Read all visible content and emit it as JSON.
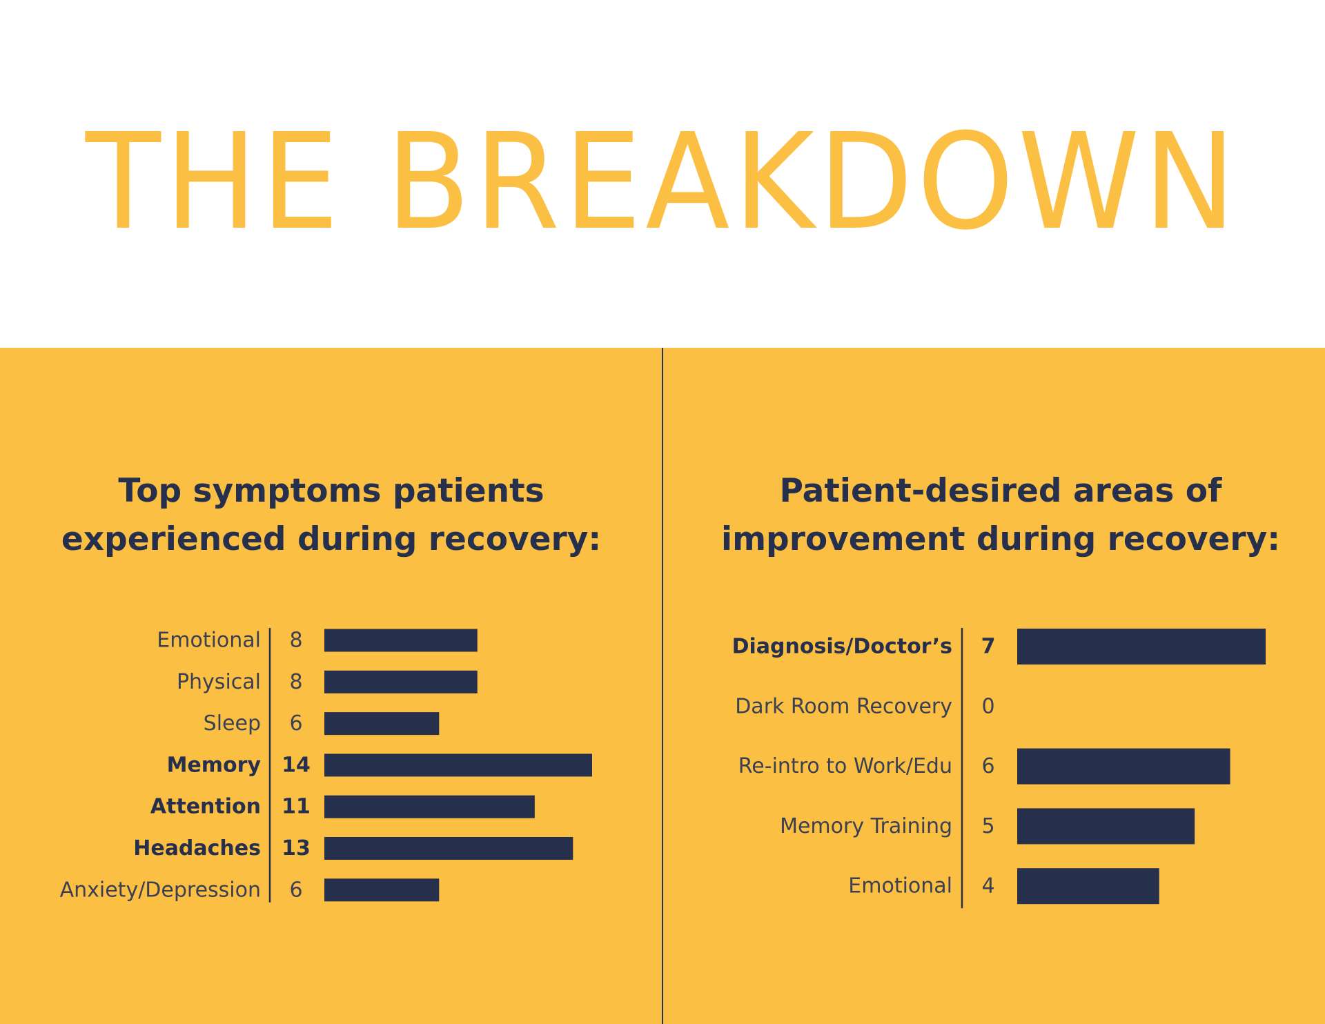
{
  "page": {
    "title": "THE BREAKDOWN",
    "colors": {
      "background_top": "#ffffff",
      "panel": "#fbbf44",
      "title": "#fbbf44",
      "bars": "#26304d",
      "text_dark": "#26304d",
      "divider": "#26304d"
    }
  },
  "chart_data": [
    {
      "type": "bar",
      "orientation": "horizontal",
      "title": "Top symptoms patients experienced during recovery:",
      "title_lines": [
        "Top symptoms patients",
        "experienced during recovery:"
      ],
      "categories": [
        "Emotional",
        "Physical",
        "Sleep",
        "Memory",
        "Attention",
        "Headaches",
        "Anxiety/Depression"
      ],
      "values": [
        8,
        8,
        6,
        14,
        11,
        13,
        6
      ],
      "value_labels": [
        "8",
        "8",
        "6",
        "14",
        "11",
        "13",
        "6"
      ],
      "highlighted": [
        "Memory",
        "Attention",
        "Headaches"
      ],
      "xlim": [
        0,
        14
      ],
      "grid": false,
      "legend": "none"
    },
    {
      "type": "bar",
      "orientation": "horizontal",
      "title": "Patient-desired areas of improvement during recovery:",
      "title_lines": [
        "Patient-desired areas of",
        "improvement during recovery:"
      ],
      "categories": [
        "Diagnosis/Doctor’s",
        "Dark Room Recovery",
        "Re-intro to Work/Edu",
        "Memory Training",
        "Emotional"
      ],
      "values": [
        7,
        0,
        6,
        5,
        4
      ],
      "value_labels": [
        "7",
        "0",
        "6",
        "5",
        "4"
      ],
      "highlighted": [
        "Diagnosis/Doctor’s"
      ],
      "xlim": [
        0,
        7
      ],
      "grid": false,
      "legend": "none"
    }
  ]
}
